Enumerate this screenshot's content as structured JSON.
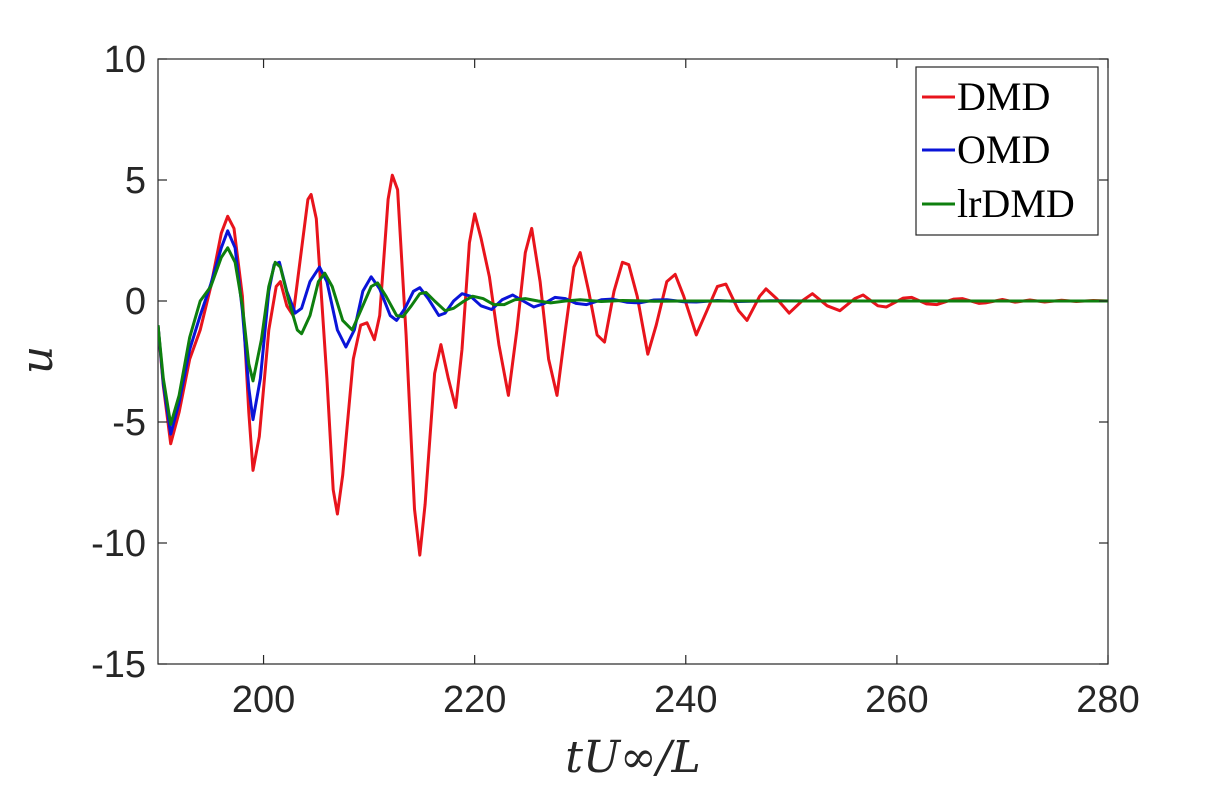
{
  "chart_data": {
    "type": "line",
    "xlabel": "tU∞/L",
    "ylabel": "u",
    "xlim": [
      190,
      280
    ],
    "ylim": [
      -15,
      10
    ],
    "x_ticks": [
      200,
      220,
      240,
      260,
      280
    ],
    "y_ticks": [
      10,
      5,
      0,
      -5,
      -10,
      -15
    ],
    "x_tick_labels": [
      "200",
      "220",
      "240",
      "260",
      "280"
    ],
    "y_tick_labels": [
      "10",
      "5",
      "0",
      "-5",
      "-10",
      "-15"
    ],
    "grid": false,
    "legend_position": "top-right",
    "series": [
      {
        "name": "DMD",
        "color": "#e8141c",
        "points": [
          [
            190,
            -1.0
          ],
          [
            190.5,
            -3.5
          ],
          [
            191.2,
            -5.9
          ],
          [
            192,
            -4.6
          ],
          [
            193,
            -2.4
          ],
          [
            194,
            -1.2
          ],
          [
            195,
            0.6
          ],
          [
            196,
            2.8
          ],
          [
            196.6,
            3.5
          ],
          [
            197.2,
            3.0
          ],
          [
            198,
            0.2
          ],
          [
            198.6,
            -4.6
          ],
          [
            199,
            -7.0
          ],
          [
            199.6,
            -5.6
          ],
          [
            200.5,
            -1.2
          ],
          [
            201.2,
            0.6
          ],
          [
            201.6,
            0.8
          ],
          [
            202.2,
            -0.2
          ],
          [
            202.8,
            -0.6
          ],
          [
            203.5,
            1.8
          ],
          [
            204.2,
            4.2
          ],
          [
            204.5,
            4.4
          ],
          [
            205,
            3.4
          ],
          [
            206,
            -3.2
          ],
          [
            206.6,
            -7.8
          ],
          [
            207,
            -8.8
          ],
          [
            207.5,
            -7.2
          ],
          [
            208.5,
            -2.4
          ],
          [
            209.2,
            -1.0
          ],
          [
            209.8,
            -0.9
          ],
          [
            210.5,
            -1.6
          ],
          [
            211,
            -0.6
          ],
          [
            211.8,
            4.2
          ],
          [
            212.2,
            5.2
          ],
          [
            212.7,
            4.6
          ],
          [
            213.5,
            -1.4
          ],
          [
            214.3,
            -8.6
          ],
          [
            214.8,
            -10.5
          ],
          [
            215.3,
            -8.4
          ],
          [
            216.2,
            -3.0
          ],
          [
            216.8,
            -1.8
          ],
          [
            217.5,
            -3.2
          ],
          [
            218.2,
            -4.4
          ],
          [
            218.8,
            -2.0
          ],
          [
            219.5,
            2.4
          ],
          [
            220,
            3.6
          ],
          [
            220.6,
            2.6
          ],
          [
            221.4,
            1.0
          ],
          [
            222.3,
            -1.8
          ],
          [
            223.2,
            -3.9
          ],
          [
            224,
            -1.2
          ],
          [
            224.8,
            2.0
          ],
          [
            225.4,
            3.0
          ],
          [
            226.2,
            0.8
          ],
          [
            227,
            -2.4
          ],
          [
            227.8,
            -3.9
          ],
          [
            228.6,
            -1.2
          ],
          [
            229.4,
            1.4
          ],
          [
            230,
            2.0
          ],
          [
            230.8,
            0.4
          ],
          [
            231.6,
            -1.4
          ],
          [
            232.3,
            -1.7
          ],
          [
            233.2,
            0.4
          ],
          [
            234,
            1.6
          ],
          [
            234.6,
            1.5
          ],
          [
            235.4,
            0.2
          ],
          [
            236.4,
            -2.2
          ],
          [
            237.2,
            -1.0
          ],
          [
            238.2,
            0.8
          ],
          [
            239,
            1.1
          ],
          [
            239.8,
            0.2
          ],
          [
            241,
            -1.4
          ],
          [
            242,
            -0.4
          ],
          [
            243,
            0.6
          ],
          [
            243.8,
            0.7
          ],
          [
            245,
            -0.4
          ],
          [
            245.8,
            -0.8
          ],
          [
            247,
            0.2
          ],
          [
            247.6,
            0.5
          ],
          [
            248.6,
            0.1
          ],
          [
            249.8,
            -0.5
          ],
          [
            251,
            0.0
          ],
          [
            252,
            0.3
          ],
          [
            253.4,
            -0.2
          ],
          [
            254.6,
            -0.4
          ],
          [
            256,
            0.1
          ],
          [
            256.8,
            0.25
          ],
          [
            258.2,
            -0.2
          ],
          [
            259,
            -0.25
          ],
          [
            260.6,
            0.12
          ],
          [
            261.4,
            0.15
          ],
          [
            262.8,
            -0.12
          ],
          [
            263.8,
            -0.15
          ],
          [
            265.4,
            0.08
          ],
          [
            266.2,
            0.1
          ],
          [
            267.8,
            -0.1
          ],
          [
            268.4,
            -0.08
          ],
          [
            270,
            0.06
          ],
          [
            271.2,
            -0.05
          ],
          [
            272.6,
            0.04
          ],
          [
            274,
            -0.04
          ],
          [
            275.6,
            0.03
          ],
          [
            277,
            -0.02
          ],
          [
            278.6,
            0.02
          ],
          [
            280,
            0.0
          ]
        ]
      },
      {
        "name": "OMD",
        "color": "#0a14d8",
        "points": [
          [
            190,
            -1.0
          ],
          [
            190.5,
            -3.4
          ],
          [
            191.2,
            -5.5
          ],
          [
            192,
            -4.2
          ],
          [
            193,
            -2.0
          ],
          [
            194,
            -0.6
          ],
          [
            195,
            0.7
          ],
          [
            196,
            2.2
          ],
          [
            196.6,
            2.9
          ],
          [
            197.3,
            2.2
          ],
          [
            198,
            -0.4
          ],
          [
            198.6,
            -3.6
          ],
          [
            199,
            -4.9
          ],
          [
            199.7,
            -3.2
          ],
          [
            200.5,
            0.4
          ],
          [
            201,
            1.5
          ],
          [
            201.5,
            1.6
          ],
          [
            202.2,
            0.4
          ],
          [
            203,
            -0.5
          ],
          [
            203.6,
            -0.3
          ],
          [
            204.4,
            0.8
          ],
          [
            205.3,
            1.4
          ],
          [
            206,
            0.8
          ],
          [
            207,
            -1.2
          ],
          [
            207.8,
            -1.9
          ],
          [
            208.6,
            -1.2
          ],
          [
            209.4,
            0.4
          ],
          [
            210.2,
            1.0
          ],
          [
            211,
            0.5
          ],
          [
            212,
            -0.6
          ],
          [
            212.6,
            -0.8
          ],
          [
            213.4,
            -0.3
          ],
          [
            214.2,
            0.4
          ],
          [
            214.8,
            0.55
          ],
          [
            215.6,
            0.1
          ],
          [
            216.6,
            -0.6
          ],
          [
            217.2,
            -0.5
          ],
          [
            218,
            0.0
          ],
          [
            218.8,
            0.3
          ],
          [
            219.6,
            0.2
          ],
          [
            220.6,
            -0.2
          ],
          [
            221.6,
            -0.35
          ],
          [
            222.6,
            0.05
          ],
          [
            223.6,
            0.25
          ],
          [
            224.6,
            0.0
          ],
          [
            225.6,
            -0.25
          ],
          [
            226.6,
            -0.1
          ],
          [
            227.6,
            0.15
          ],
          [
            228.6,
            0.1
          ],
          [
            229.6,
            -0.1
          ],
          [
            230.6,
            -0.15
          ],
          [
            232,
            0.05
          ],
          [
            233,
            0.08
          ],
          [
            234.4,
            -0.05
          ],
          [
            235.6,
            -0.08
          ],
          [
            237,
            0.04
          ],
          [
            238.2,
            0.05
          ],
          [
            239.8,
            -0.03
          ],
          [
            241,
            -0.04
          ],
          [
            243,
            0.02
          ],
          [
            245,
            -0.02
          ],
          [
            248,
            0.01
          ],
          [
            252,
            0.0
          ],
          [
            260,
            0.0
          ],
          [
            280,
            0.0
          ]
        ]
      },
      {
        "name": "lrDMD",
        "color": "#0e7f0e",
        "points": [
          [
            190,
            -1.0
          ],
          [
            190.5,
            -3.2
          ],
          [
            191.2,
            -5.1
          ],
          [
            192,
            -3.9
          ],
          [
            193,
            -1.5
          ],
          [
            194,
            0.0
          ],
          [
            195,
            0.6
          ],
          [
            196,
            1.8
          ],
          [
            196.6,
            2.2
          ],
          [
            197.3,
            1.6
          ],
          [
            198,
            -0.2
          ],
          [
            198.6,
            -2.6
          ],
          [
            199,
            -3.3
          ],
          [
            199.8,
            -1.6
          ],
          [
            200.5,
            0.6
          ],
          [
            201.1,
            1.6
          ],
          [
            201.6,
            1.4
          ],
          [
            202.4,
            0.0
          ],
          [
            203.2,
            -1.2
          ],
          [
            203.6,
            -1.35
          ],
          [
            204.4,
            -0.6
          ],
          [
            205.2,
            0.8
          ],
          [
            205.8,
            1.15
          ],
          [
            206.5,
            0.6
          ],
          [
            207.5,
            -0.8
          ],
          [
            208.4,
            -1.2
          ],
          [
            209.2,
            -0.4
          ],
          [
            210.2,
            0.6
          ],
          [
            210.8,
            0.75
          ],
          [
            211.6,
            0.2
          ],
          [
            212.6,
            -0.6
          ],
          [
            213.2,
            -0.65
          ],
          [
            214,
            -0.2
          ],
          [
            214.8,
            0.3
          ],
          [
            215.4,
            0.35
          ],
          [
            216.2,
            0.0
          ],
          [
            217.2,
            -0.4
          ],
          [
            218,
            -0.3
          ],
          [
            219,
            0.0
          ],
          [
            219.8,
            0.2
          ],
          [
            220.8,
            0.1
          ],
          [
            221.8,
            -0.15
          ],
          [
            222.8,
            -0.15
          ],
          [
            223.8,
            0.05
          ],
          [
            224.8,
            0.1
          ],
          [
            226,
            0.0
          ],
          [
            227.2,
            -0.08
          ],
          [
            228.6,
            0.0
          ],
          [
            230,
            0.05
          ],
          [
            232,
            -0.02
          ],
          [
            234,
            0.02
          ],
          [
            237,
            -0.01
          ],
          [
            240,
            0.0
          ],
          [
            250,
            0.0
          ],
          [
            280,
            0.0
          ]
        ]
      }
    ]
  }
}
